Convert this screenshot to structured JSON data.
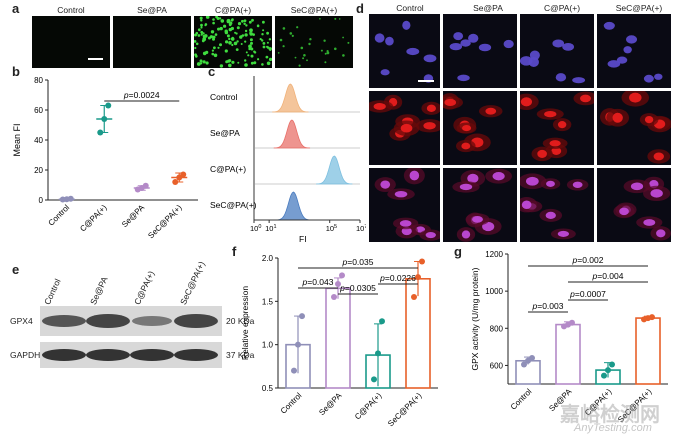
{
  "panel_labels": {
    "a": "a",
    "b": "b",
    "c": "c",
    "d": "d",
    "e": "e",
    "f": "f",
    "g": "g"
  },
  "groups": [
    "Control",
    "Se@PA",
    "C@PA(+)",
    "SeC@PA(+)"
  ],
  "panel_a": {
    "labels": [
      "Control",
      "Se@PA",
      "C@PA(+)",
      "SeC@PA(+)"
    ]
  },
  "panel_d": {
    "labels": [
      "Control",
      "Se@PA",
      "C@PA(+)",
      "SeC@PA(+)"
    ]
  },
  "colors": {
    "control": "#8f8fb8",
    "sepa": "#b48ac8",
    "cpa": "#1a9a8a",
    "secpa": "#e8602a",
    "hist_control": "#f0b27a",
    "hist_sepa": "#e8706a",
    "hist_cpa": "#7ec0e0",
    "hist_secpa": "#4a7cc0"
  },
  "chart_data": [
    {
      "type": "scatter",
      "panel": "b",
      "ylabel": "Mean FI",
      "categories": [
        "Control",
        "C@PA(+)",
        "Se@PA",
        "SeC@PA(+)"
      ],
      "ylim": [
        0,
        80
      ],
      "yticks": [
        0,
        20,
        40,
        60,
        80
      ],
      "means": [
        0.5,
        54,
        8,
        15
      ],
      "sd": [
        0.5,
        9,
        1.5,
        3
      ],
      "points": [
        [
          0.3,
          0.5,
          0.8
        ],
        [
          45,
          54,
          63
        ],
        [
          7,
          8,
          9.5
        ],
        [
          12,
          15,
          17
        ]
      ],
      "annotation": "p=0.0024"
    },
    {
      "type": "area",
      "panel": "c",
      "xlabel": "FI",
      "xticks": [
        "10^0",
        "10^1",
        "10^5",
        "10^7"
      ],
      "series": [
        {
          "name": "Control",
          "peak": 2.4
        },
        {
          "name": "Se@PA",
          "peak": 2.5
        },
        {
          "name": "C@PA(+)",
          "peak": 5.3
        },
        {
          "name": "SeC@PA(+)",
          "peak": 2.6
        }
      ]
    },
    {
      "type": "bar",
      "panel": "f",
      "ylabel": "Relative expression",
      "categories": [
        "Control",
        "Se@PA",
        "C@PA(+)",
        "SeC@PA(+)"
      ],
      "ylim": [
        0.5,
        2.0
      ],
      "yticks": [
        0.5,
        1.0,
        1.5,
        2.0
      ],
      "values": [
        1.0,
        1.65,
        0.88,
        1.76
      ],
      "sd": [
        0.33,
        0.12,
        0.36,
        0.2
      ],
      "points": [
        [
          0.7,
          1.0,
          1.33
        ],
        [
          1.55,
          1.7,
          1.8
        ],
        [
          0.6,
          0.9,
          1.27
        ],
        [
          1.55,
          1.78,
          1.96
        ]
      ],
      "annotations": [
        "p=0.035",
        "p=0.043",
        "p=0.0305",
        "p=0.0226"
      ]
    },
    {
      "type": "bar",
      "panel": "g",
      "ylabel": "GPX activity (U/mg protein)",
      "categories": [
        "Control",
        "Se@PA",
        "C@PA(+)",
        "SeC@PA(+)"
      ],
      "ylim": [
        500,
        1200
      ],
      "yticks": [
        600,
        800,
        1000,
        1200
      ],
      "values": [
        625,
        820,
        575,
        855
      ],
      "sd": [
        20,
        15,
        40,
        10
      ],
      "points": [
        [
          605,
          625,
          640
        ],
        [
          810,
          820,
          830
        ],
        [
          545,
          575,
          605
        ],
        [
          848,
          855,
          860
        ]
      ],
      "annotations": [
        "p=0.002",
        "p=0.003",
        "p=0.0007",
        "p=0.004"
      ]
    }
  ],
  "panel_e": {
    "columns": [
      "Control",
      "Se@PA",
      "C@PA(+)",
      "SeC@PA(+)"
    ],
    "rows": [
      {
        "name": "GPX4",
        "size": "20 KDa"
      },
      {
        "name": "GAPDH",
        "size": "37 KDa"
      }
    ]
  },
  "watermark": {
    "cn": "嘉峪检测网",
    "en": "AnyTesting.com"
  }
}
